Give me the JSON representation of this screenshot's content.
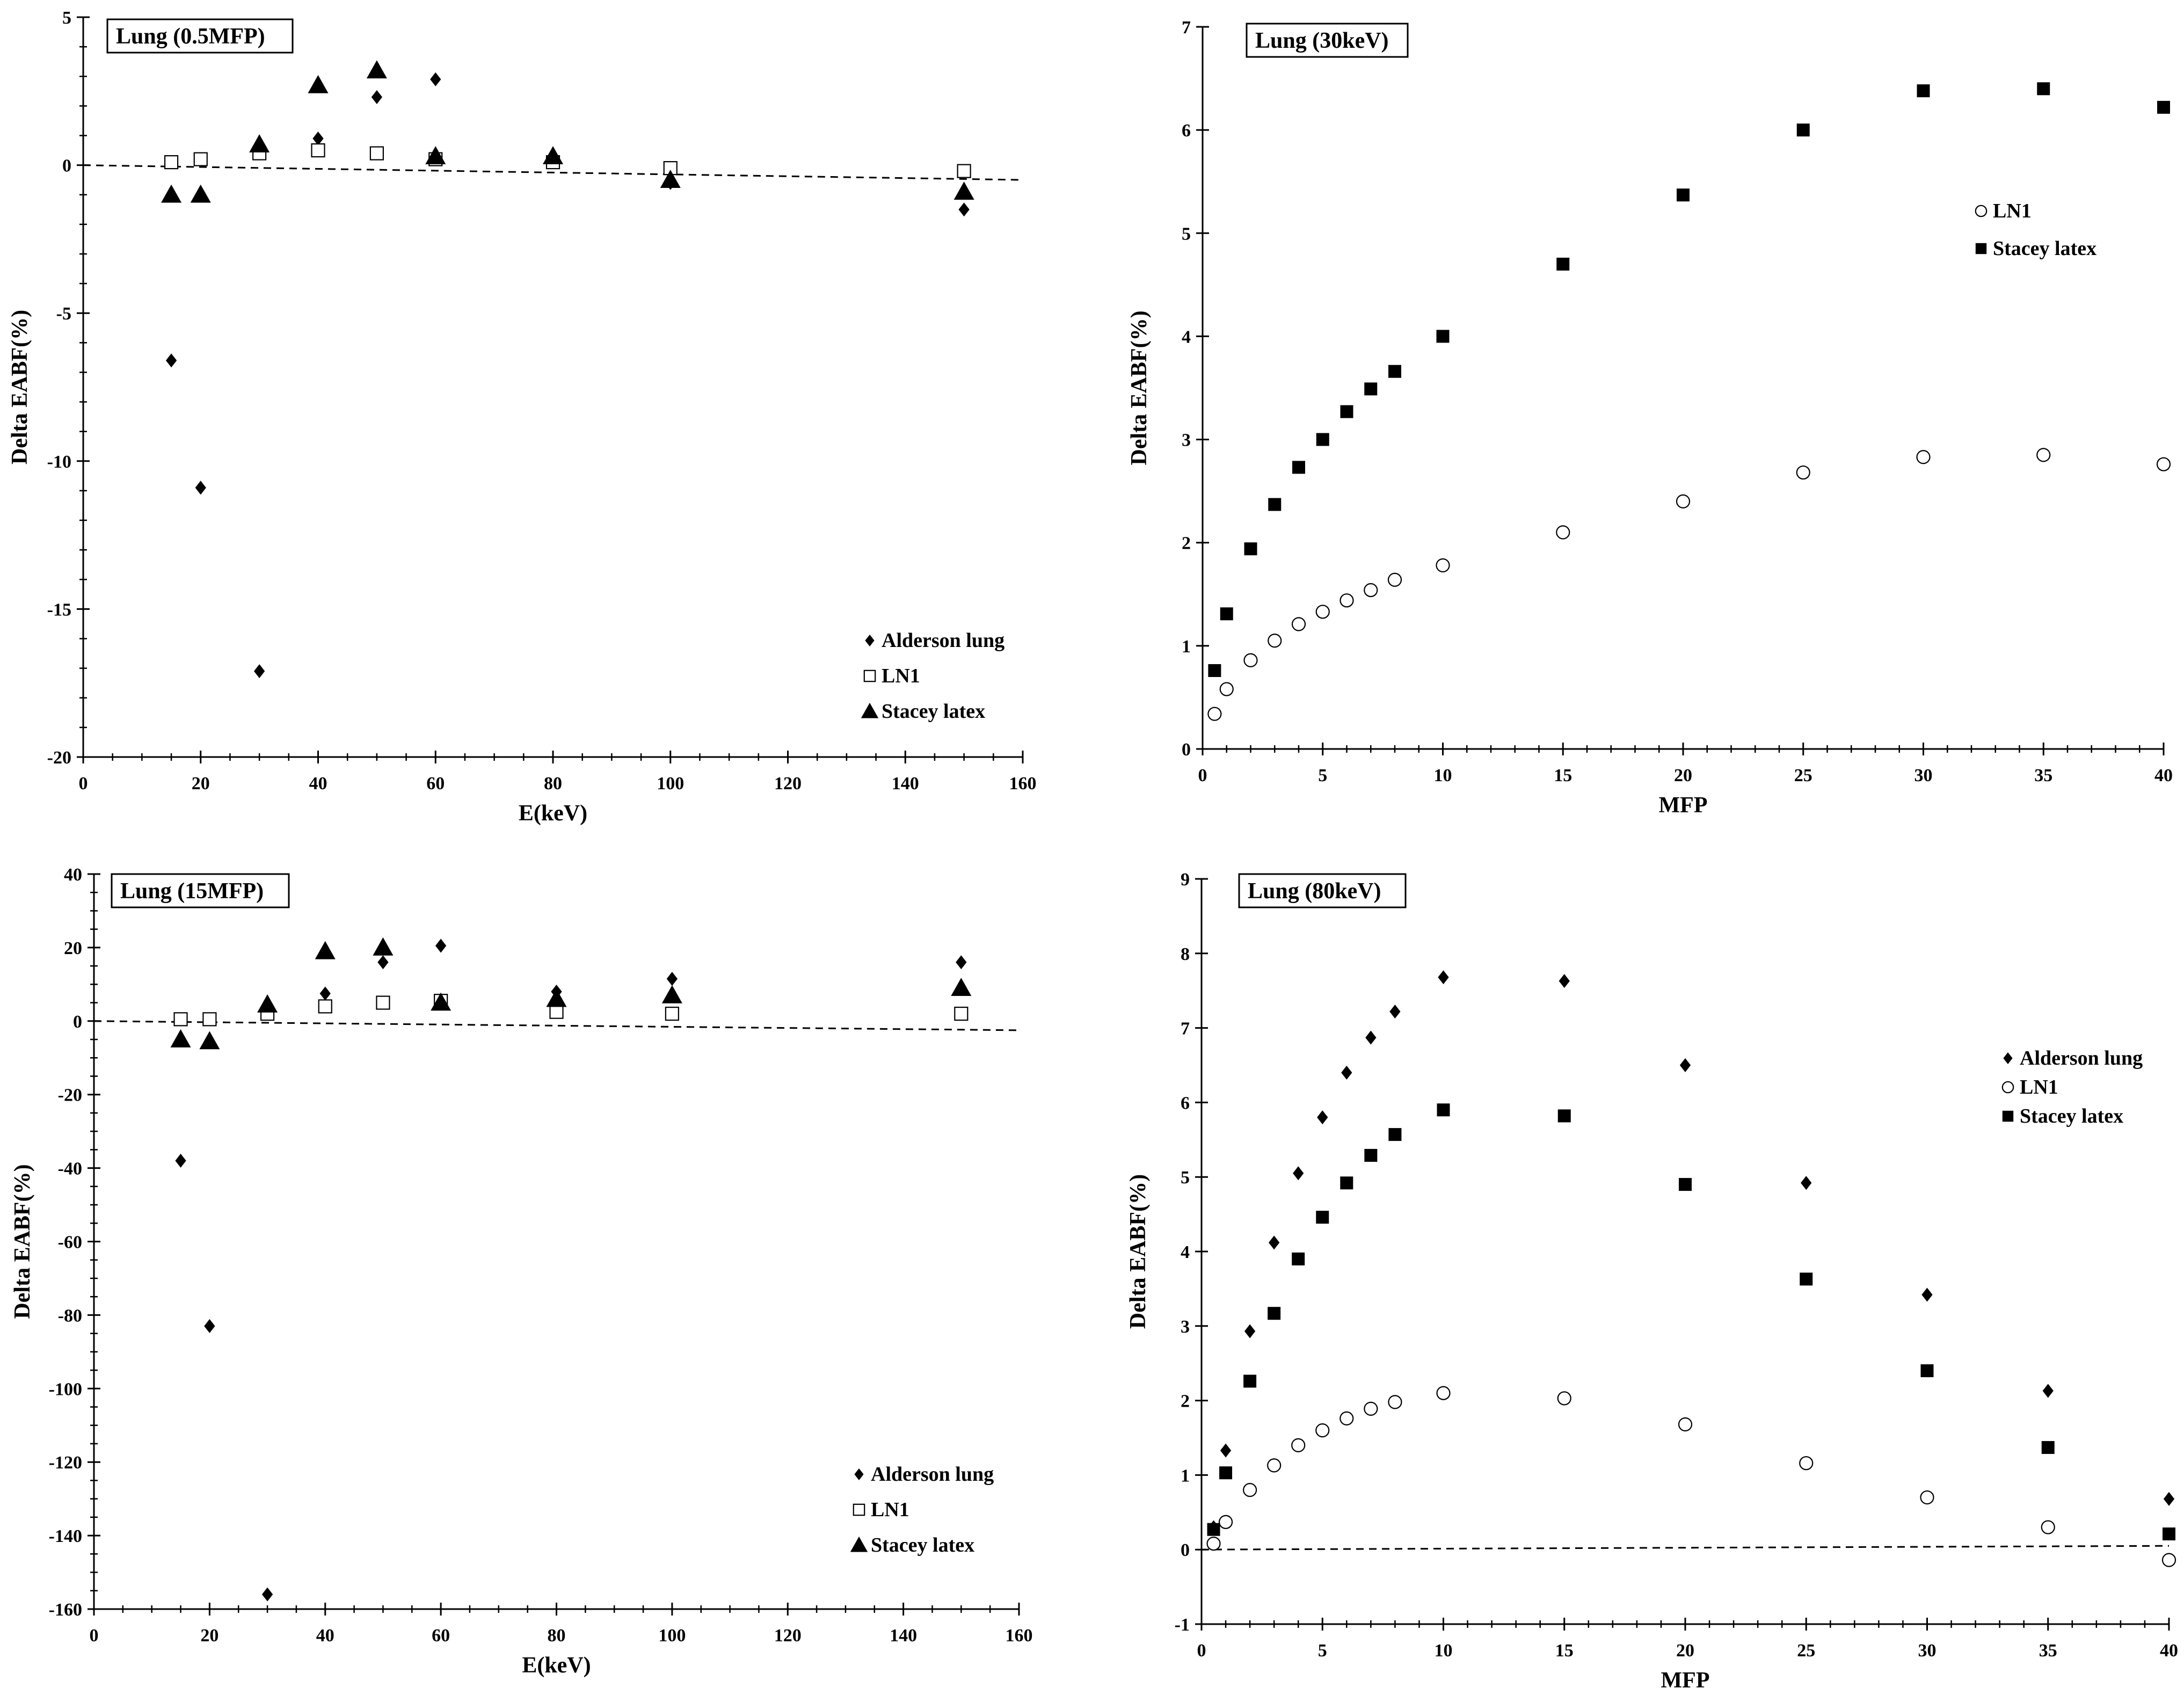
{
  "chart_data": [
    {
      "id": "p1",
      "type": "scatter",
      "title": "Lung (0.5MFP)",
      "xlabel": "E(keV)",
      "ylabel": "Delta EABF(%)",
      "xlim": [
        0,
        160
      ],
      "ylim": [
        -20,
        5
      ],
      "xticks": [
        0,
        20,
        40,
        60,
        80,
        100,
        120,
        140,
        160
      ],
      "yticks": [
        -20,
        -15,
        -10,
        -5,
        0,
        5
      ],
      "legend_position": "bottom-right",
      "reference_line": {
        "style": "dashed",
        "x": [
          0,
          160
        ],
        "y": [
          0,
          -0.5
        ]
      },
      "series": [
        {
          "name": "Alderson lung",
          "marker": "diamond",
          "x": [
            15,
            20,
            30,
            40,
            50,
            60,
            80,
            100,
            150
          ],
          "y": [
            -6.6,
            -10.9,
            -17.1,
            0.9,
            2.3,
            2.9,
            0.2,
            -0.6,
            -1.5
          ]
        },
        {
          "name": "LN1",
          "marker": "open-square",
          "x": [
            15,
            20,
            30,
            40,
            50,
            60,
            80,
            100,
            150
          ],
          "y": [
            0.1,
            0.2,
            0.4,
            0.5,
            0.4,
            0.2,
            0.1,
            -0.1,
            -0.2
          ]
        },
        {
          "name": "Stacey latex",
          "marker": "triangle",
          "x": [
            15,
            20,
            30,
            40,
            50,
            60,
            80,
            100,
            150
          ],
          "y": [
            -1.0,
            -1.0,
            0.7,
            2.7,
            3.2,
            0.3,
            0.3,
            -0.5,
            -0.9
          ]
        }
      ]
    },
    {
      "id": "p2",
      "type": "scatter",
      "title": "Lung (30keV)",
      "xlabel": "MFP",
      "ylabel": "Delta EABF(%)",
      "xlim": [
        0,
        40
      ],
      "ylim": [
        0,
        7
      ],
      "xticks": [
        0,
        5,
        10,
        15,
        20,
        25,
        30,
        35,
        40
      ],
      "yticks": [
        0,
        1,
        2,
        3,
        4,
        5,
        6,
        7
      ],
      "legend_position": "top-right",
      "series": [
        {
          "name": "LN1",
          "marker": "open-circle",
          "x": [
            0.5,
            1,
            2,
            3,
            4,
            5,
            6,
            7,
            8,
            10,
            15,
            20,
            25,
            30,
            35,
            40
          ],
          "y": [
            0.34,
            0.58,
            0.86,
            1.05,
            1.21,
            1.33,
            1.44,
            1.54,
            1.64,
            1.78,
            2.1,
            2.4,
            2.68,
            2.83,
            2.85,
            2.76
          ]
        },
        {
          "name": "Stacey latex",
          "marker": "filled-square",
          "x": [
            0.5,
            1,
            2,
            3,
            4,
            5,
            6,
            7,
            8,
            10,
            15,
            20,
            25,
            30,
            35,
            40
          ],
          "y": [
            0.76,
            1.31,
            1.94,
            2.37,
            2.73,
            3.0,
            3.27,
            3.49,
            3.66,
            4.0,
            4.7,
            5.37,
            6.0,
            6.38,
            6.4,
            6.22
          ]
        }
      ]
    },
    {
      "id": "p3",
      "type": "scatter",
      "title": "Lung (15MFP)",
      "xlabel": "E(keV)",
      "ylabel": "Delta EABF(%)",
      "xlim": [
        0,
        160
      ],
      "ylim": [
        -160,
        40
      ],
      "xticks": [
        0,
        20,
        40,
        60,
        80,
        100,
        120,
        140,
        160
      ],
      "yticks": [
        -160,
        -140,
        -120,
        -100,
        -80,
        -60,
        -40,
        -20,
        0,
        20,
        40
      ],
      "legend_position": "bottom-right",
      "reference_line": {
        "style": "dashed",
        "x": [
          0,
          160
        ],
        "y": [
          0,
          -2.5
        ]
      },
      "series": [
        {
          "name": "Alderson lung",
          "marker": "diamond",
          "x": [
            15,
            20,
            30,
            40,
            50,
            60,
            80,
            100,
            150
          ],
          "y": [
            -38,
            -83,
            -156,
            7.5,
            16,
            20.5,
            8,
            11.5,
            16
          ]
        },
        {
          "name": "LN1",
          "marker": "open-square",
          "x": [
            15,
            20,
            30,
            40,
            50,
            60,
            80,
            100,
            150
          ],
          "y": [
            0.5,
            0.5,
            2,
            4,
            5,
            5.5,
            2.5,
            2,
            2
          ]
        },
        {
          "name": "Stacey latex",
          "marker": "triangle",
          "x": [
            15,
            20,
            30,
            40,
            50,
            60,
            80,
            100,
            150
          ],
          "y": [
            -5,
            -5.5,
            4.5,
            19,
            20,
            5,
            6,
            7,
            9
          ]
        }
      ]
    },
    {
      "id": "p4",
      "type": "scatter",
      "title": "Lung (80keV)",
      "xlabel": "MFP",
      "ylabel": "Delta EABF(%)",
      "xlim": [
        0,
        40
      ],
      "ylim": [
        -1,
        9
      ],
      "xticks": [
        0,
        5,
        10,
        15,
        20,
        25,
        30,
        35,
        40
      ],
      "yticks": [
        -1,
        0,
        1,
        2,
        3,
        4,
        5,
        6,
        7,
        8,
        9
      ],
      "legend_position": "top-right",
      "reference_line": {
        "style": "dashed",
        "x": [
          0,
          40
        ],
        "y": [
          0,
          0.05
        ]
      },
      "series": [
        {
          "name": "Alderson lung",
          "marker": "diamond",
          "x": [
            0.5,
            1,
            2,
            3,
            4,
            5,
            6,
            7,
            8,
            10,
            15,
            20,
            25,
            30,
            35,
            40
          ],
          "y": [
            0.3,
            1.33,
            2.93,
            4.12,
            5.05,
            5.8,
            6.4,
            6.87,
            7.22,
            7.68,
            7.63,
            6.5,
            4.92,
            3.42,
            2.13,
            0.68
          ]
        },
        {
          "name": "LN1",
          "marker": "open-circle",
          "x": [
            0.5,
            1,
            2,
            3,
            4,
            5,
            6,
            7,
            8,
            10,
            15,
            20,
            25,
            30,
            35,
            40
          ],
          "y": [
            0.08,
            0.37,
            0.8,
            1.13,
            1.4,
            1.6,
            1.76,
            1.89,
            1.98,
            2.1,
            2.03,
            1.68,
            1.16,
            0.7,
            0.3,
            -0.14
          ]
        },
        {
          "name": "Stacey latex",
          "marker": "filled-square",
          "x": [
            0.5,
            1,
            2,
            3,
            4,
            5,
            6,
            7,
            8,
            10,
            15,
            20,
            25,
            30,
            35,
            40
          ],
          "y": [
            0.27,
            1.03,
            2.26,
            3.17,
            3.9,
            4.46,
            4.92,
            5.29,
            5.57,
            5.9,
            5.82,
            4.9,
            3.63,
            2.4,
            1.37,
            0.21
          ]
        }
      ]
    }
  ]
}
